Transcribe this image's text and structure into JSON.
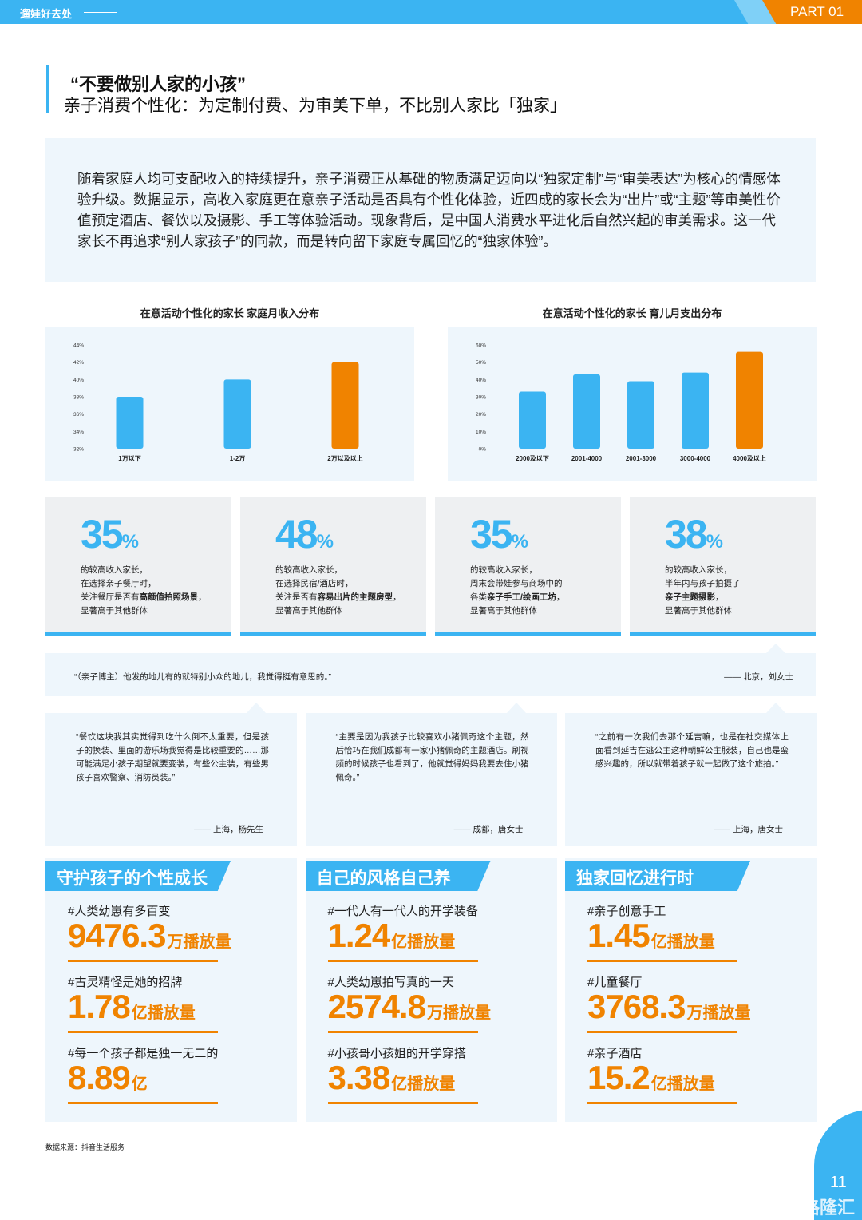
{
  "header": {
    "section": "遛娃好去处",
    "part": "PART 01"
  },
  "title": "“不要做别人家的小孩”",
  "subtitle": "亲子消费个性化：为定制付费、为审美下单，不比别人家比「独家」",
  "intro": "随着家庭人均可支配收入的持续提升，亲子消费正从基础的物质满足迈向以“独家定制”与“审美表达”为核心的情感体验升级。数据显示，高收入家庭更在意亲子活动是否具有个性化体验，近四成的家长会为“出片”或“主题”等审美性价值预定酒店、餐饮以及摄影、手工等体验活动。现象背后，是中国人消费水平进化后自然兴起的审美需求。这一代家长不再追求“别人家孩子”的同款，而是转向留下家庭专属回忆的“独家体验”。",
  "chart_data": [
    {
      "type": "bar",
      "title": "在意活动个性化的家长 家庭月收入分布",
      "categories": [
        "1万以下",
        "1-2万",
        "2万以及以上"
      ],
      "values": [
        38,
        40,
        42
      ],
      "colors": [
        "#3bb4f2",
        "#3bb4f2",
        "#f08300"
      ],
      "ylim": [
        32,
        44
      ],
      "yticks": [
        {
          "value": 32,
          "label": "32%"
        },
        {
          "value": 34,
          "label": "34%"
        },
        {
          "value": 36,
          "label": "36%"
        },
        {
          "value": 38,
          "label": "38%"
        },
        {
          "value": 40,
          "label": "40%"
        },
        {
          "value": 42,
          "label": "42%"
        },
        {
          "value": 44,
          "label": "44%"
        }
      ]
    },
    {
      "type": "bar",
      "title": "在意活动个性化的家长 育儿月支出分布",
      "categories": [
        "2000及以下",
        "2001-4000",
        "2001-3000",
        "3000-4000",
        "4000及以上"
      ],
      "values": [
        33,
        43,
        39,
        44,
        56
      ],
      "colors": [
        "#3bb4f2",
        "#3bb4f2",
        "#3bb4f2",
        "#3bb4f2",
        "#f08300"
      ],
      "ylim": [
        0,
        60
      ],
      "yticks": [
        {
          "value": 0,
          "label": "0%"
        },
        {
          "value": 10,
          "label": "10%"
        },
        {
          "value": 20,
          "label": "20%"
        },
        {
          "value": 30,
          "label": "30%"
        },
        {
          "value": 40,
          "label": "40%"
        },
        {
          "value": 50,
          "label": "50%"
        },
        {
          "value": 60,
          "label": "60%"
        }
      ]
    }
  ],
  "stats": [
    {
      "value": 35,
      "unit": "%",
      "lines": [
        [
          "的较高收入家长，"
        ],
        [
          "在选择亲子餐厅时，"
        ],
        [
          "关注餐厅是否有",
          {
            "text": "高颜值拍照场景",
            "bold": true
          },
          "，"
        ],
        [
          "显著高于其他群体"
        ]
      ]
    },
    {
      "value": 48,
      "unit": "%",
      "lines": [
        [
          "的较高收入家长，"
        ],
        [
          "在选择民宿/酒店时，"
        ],
        [
          "关注是否有",
          {
            "text": "容易出片的主题房型",
            "bold": true
          },
          "，"
        ],
        [
          "显著高于其他群体"
        ]
      ]
    },
    {
      "value": 35,
      "unit": "%",
      "lines": [
        [
          "的较高收入家长，"
        ],
        [
          "周末会带娃参与商场中的"
        ],
        [
          "各类",
          {
            "text": "亲子手工/绘画工坊",
            "bold": true
          },
          "，"
        ],
        [
          "显著高于其他群体"
        ]
      ]
    },
    {
      "value": 38,
      "unit": "%",
      "lines": [
        [
          "的较高收入家长，"
        ],
        [
          "半年内与孩子拍摄了"
        ],
        [
          {
            "text": "亲子主题摄影",
            "bold": true
          },
          "，"
        ],
        [
          "显著高于其他群体"
        ]
      ]
    }
  ],
  "featured_quote": {
    "text": "“（亲子博主）他发的地儿有的就特别小众的地儿，我觉得挺有意思的。”",
    "author": "—— 北京，刘女士"
  },
  "quotes": [
    {
      "text": "“餐饮这块我其实觉得到吃什么倒不太重要，但是孩子的换装、里面的游乐场我觉得是比较重要的……那可能满足小孩子期望就要变装，有些公主装，有些男孩子喜欢警察、消防员装。”",
      "author": "—— 上海，杨先生"
    },
    {
      "text": "“主要是因为我孩子比较喜欢小猪佩奇这个主题，然后恰巧在我们成都有一家小猪佩奇的主题酒店。刷视频的时候孩子也看到了，他就觉得妈妈我要去住小猪佩奇。”",
      "author": "—— 成都，唐女士"
    },
    {
      "text": "“之前有一次我们去那个延吉嘛，也是在社交媒体上面看到延吉在逃公主这种朝鲜公主服装，自己也是蛮感兴趣的，所以就带着孩子就一起做了这个旅拍。”",
      "author": "—— 上海，唐女士"
    }
  ],
  "panels": [
    {
      "title": "守护孩子的个性成长",
      "items": [
        {
          "tag": "#人类幼崽有多百变",
          "value": 9476.3,
          "unit": "万播放量"
        },
        {
          "tag": "#古灵精怪是她的招牌",
          "value": 1.78,
          "unit": "亿播放量"
        },
        {
          "tag": "#每一个孩子都是独一无二的",
          "value": 8.89,
          "unit": "亿"
        }
      ]
    },
    {
      "title": "自己的风格自己养",
      "items": [
        {
          "tag": "#一代人有一代人的开学装备",
          "value": 1.24,
          "unit": "亿播放量"
        },
        {
          "tag": "#人类幼崽拍写真的一天",
          "value": 2574.8,
          "unit": "万播放量"
        },
        {
          "tag": "#小孩哥小孩姐的开学穿搭",
          "value": 3.38,
          "unit": "亿播放量"
        }
      ]
    },
    {
      "title": "独家回忆进行时",
      "items": [
        {
          "tag": "#亲子创意手工",
          "value": 1.45,
          "unit": "亿播放量"
        },
        {
          "tag": "#儿童餐厅",
          "value": 3768.3,
          "unit": "万播放量"
        },
        {
          "tag": "#亲子酒店",
          "value": 15.2,
          "unit": "亿播放量"
        }
      ]
    }
  ],
  "source": "数据来源：抖音生活服务",
  "page_number": 11,
  "watermark": "格隆汇"
}
